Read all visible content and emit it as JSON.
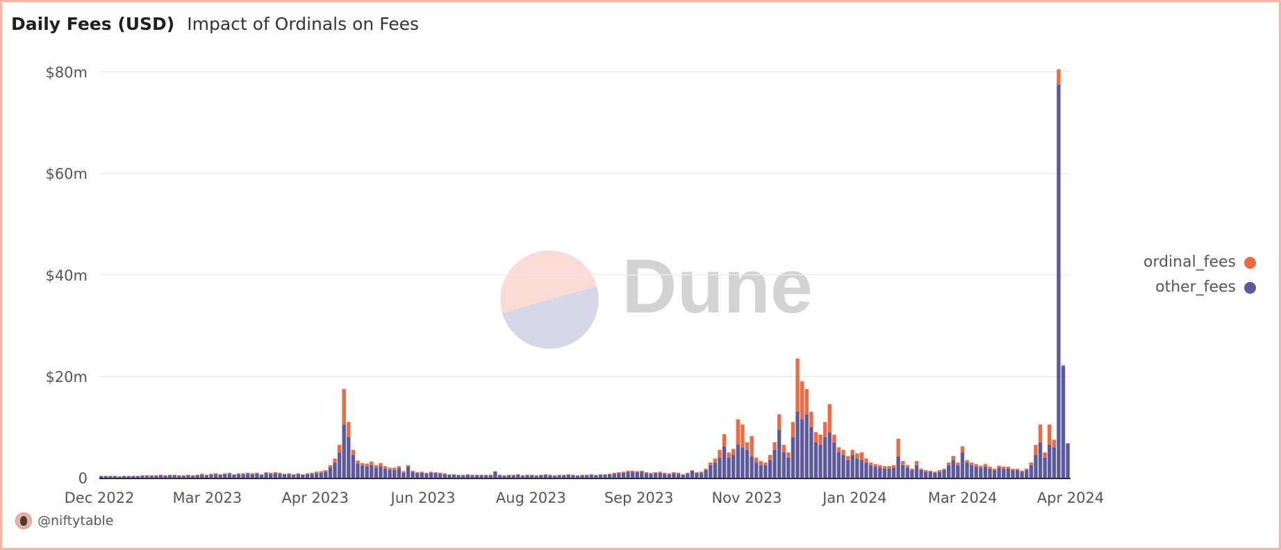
{
  "header": {
    "title": "Daily Fees (USD)",
    "subtitle": "Impact of Ordinals on Fees"
  },
  "footer": {
    "author": "@niftytable"
  },
  "watermark": {
    "text": "Dune"
  },
  "colors": {
    "ordinal_fees": "#ee6a42",
    "other_fees": "#5b5a9e",
    "frame": "#f4b5a4"
  },
  "chart_data": {
    "type": "bar",
    "stacked": true,
    "title": "Daily Fees (USD)",
    "subtitle": "Impact of Ordinals on Fees",
    "xlabel": "",
    "ylabel": "",
    "ylim": [
      0,
      80
    ],
    "unit": "USD millions",
    "y_ticks": [
      {
        "value": 0,
        "label": "0"
      },
      {
        "value": 20,
        "label": "$20m"
      },
      {
        "value": 40,
        "label": "$40m"
      },
      {
        "value": 60,
        "label": "$60m"
      },
      {
        "value": 80,
        "label": "$80m"
      }
    ],
    "x_ticks": [
      "Dec 2022",
      "Mar 2023",
      "Apr 2023",
      "Jun 2023",
      "Aug 2023",
      "Sep 2023",
      "Nov 2023",
      "Jan 2024",
      "Mar 2024",
      "Apr 2024"
    ],
    "legend": {
      "placement": "right",
      "entries": [
        "ordinal_fees",
        "other_fees"
      ]
    },
    "grid": true,
    "series": [
      {
        "name": "other_fees",
        "values": [
          0.3,
          0.3,
          0.3,
          0.3,
          0.2,
          0.3,
          0.3,
          0.3,
          0.3,
          0.4,
          0.4,
          0.4,
          0.4,
          0.5,
          0.4,
          0.5,
          0.5,
          0.4,
          0.4,
          0.5,
          0.4,
          0.5,
          0.6,
          0.5,
          0.6,
          0.7,
          0.6,
          0.7,
          0.8,
          0.6,
          0.7,
          0.7,
          0.8,
          0.7,
          0.8,
          0.6,
          0.9,
          0.8,
          0.9,
          0.8,
          0.7,
          0.7,
          0.6,
          0.7,
          0.6,
          0.7,
          0.8,
          0.9,
          1.0,
          1.2,
          2.0,
          3.0,
          5.0,
          10.5,
          8.0,
          4.5,
          2.8,
          2.4,
          2.2,
          2.5,
          2.0,
          2.3,
          1.8,
          1.6,
          1.5,
          1.9,
          1.0,
          2.2,
          1.1,
          0.9,
          1.0,
          0.8,
          1.0,
          0.9,
          0.8,
          0.7,
          0.6,
          0.6,
          0.5,
          0.5,
          0.6,
          0.5,
          0.5,
          0.5,
          0.5,
          0.5,
          1.2,
          0.5,
          0.4,
          0.5,
          0.5,
          0.6,
          0.4,
          0.5,
          0.5,
          0.4,
          0.5,
          0.6,
          0.5,
          0.4,
          0.5,
          0.5,
          0.6,
          0.5,
          0.4,
          0.5,
          0.5,
          0.6,
          0.5,
          0.6,
          0.6,
          0.7,
          0.8,
          0.9,
          1.0,
          1.2,
          1.2,
          1.1,
          1.2,
          0.9,
          0.8,
          0.9,
          1.0,
          0.8,
          0.7,
          0.9,
          0.8,
          0.6,
          0.8,
          1.3,
          0.9,
          1.0,
          1.5,
          2.5,
          3.0,
          4.0,
          6.2,
          4.0,
          4.5,
          6.5,
          6.0,
          5.5,
          4.2,
          3.0,
          2.5,
          2.5,
          3.5,
          5.5,
          9.5,
          5.0,
          4.0,
          8.0,
          13.0,
          11.5,
          12.5,
          10.0,
          7.0,
          6.5,
          8.0,
          9.0,
          7.0,
          5.0,
          4.5,
          3.5,
          4.5,
          3.8,
          3.5,
          3.0,
          2.5,
          2.2,
          2.0,
          1.8,
          1.8,
          2.0,
          4.2,
          2.5,
          2.0,
          1.5,
          2.5,
          1.5,
          1.2,
          1.2,
          1.0,
          1.2,
          1.5,
          2.5,
          3.5,
          2.5,
          5.0,
          3.0,
          2.5,
          2.2,
          2.0,
          2.2,
          1.8,
          1.5,
          2.0,
          1.8,
          1.8,
          1.5,
          1.5,
          1.2,
          1.5,
          2.5,
          4.5,
          7.0,
          4.0,
          6.5,
          6.0,
          77.5,
          22.0,
          6.8
        ]
      },
      {
        "name": "ordinal_fees",
        "values": [
          0.1,
          0.1,
          0.1,
          0.1,
          0.1,
          0.1,
          0.1,
          0.1,
          0.1,
          0.1,
          0.1,
          0.1,
          0.1,
          0.1,
          0.1,
          0.1,
          0.1,
          0.1,
          0.1,
          0.1,
          0.1,
          0.1,
          0.2,
          0.1,
          0.2,
          0.2,
          0.1,
          0.2,
          0.2,
          0.1,
          0.2,
          0.2,
          0.2,
          0.2,
          0.2,
          0.1,
          0.2,
          0.2,
          0.2,
          0.2,
          0.1,
          0.2,
          0.1,
          0.2,
          0.1,
          0.2,
          0.2,
          0.3,
          0.3,
          0.3,
          0.5,
          0.8,
          1.5,
          7.0,
          3.0,
          1.0,
          0.6,
          0.5,
          0.6,
          0.7,
          0.5,
          0.6,
          0.5,
          0.4,
          0.5,
          0.4,
          0.3,
          0.3,
          0.3,
          0.2,
          0.2,
          0.2,
          0.2,
          0.2,
          0.2,
          0.2,
          0.1,
          0.1,
          0.1,
          0.1,
          0.1,
          0.1,
          0.1,
          0.1,
          0.1,
          0.1,
          0.1,
          0.1,
          0.1,
          0.1,
          0.1,
          0.1,
          0.1,
          0.1,
          0.1,
          0.1,
          0.1,
          0.1,
          0.1,
          0.1,
          0.1,
          0.1,
          0.1,
          0.1,
          0.1,
          0.1,
          0.1,
          0.1,
          0.1,
          0.1,
          0.1,
          0.1,
          0.2,
          0.2,
          0.2,
          0.2,
          0.2,
          0.2,
          0.2,
          0.2,
          0.2,
          0.2,
          0.2,
          0.2,
          0.2,
          0.2,
          0.2,
          0.1,
          0.2,
          0.2,
          0.2,
          0.2,
          0.3,
          0.5,
          0.8,
          1.5,
          2.4,
          1.0,
          1.2,
          5.0,
          4.5,
          1.5,
          4.0,
          1.0,
          0.8,
          0.5,
          1.0,
          1.5,
          3.0,
          1.5,
          1.0,
          3.0,
          10.5,
          7.5,
          5.0,
          3.0,
          2.0,
          2.0,
          3.0,
          5.5,
          1.5,
          1.0,
          1.0,
          0.8,
          1.0,
          1.0,
          1.5,
          0.8,
          0.5,
          0.5,
          0.5,
          0.5,
          0.5,
          0.5,
          3.5,
          0.8,
          0.5,
          0.3,
          0.8,
          0.3,
          0.3,
          0.2,
          0.2,
          0.3,
          0.3,
          0.5,
          0.8,
          0.5,
          1.2,
          0.5,
          0.5,
          0.5,
          0.4,
          0.5,
          0.4,
          0.3,
          0.4,
          0.4,
          0.4,
          0.3,
          0.3,
          0.2,
          0.3,
          0.5,
          2.0,
          3.5,
          1.0,
          4.0,
          1.5,
          3.0,
          0.2,
          0.0
        ]
      }
    ]
  }
}
